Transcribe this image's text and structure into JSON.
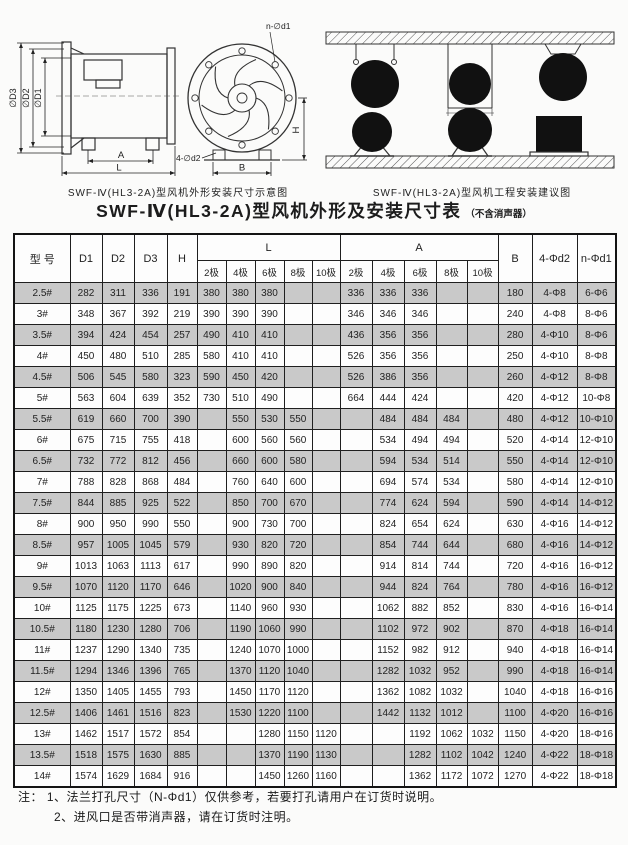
{
  "figures": {
    "left_caption": "SWF-Ⅳ(HL3-2A)型风机外形安装尺寸示意图",
    "right_caption": "SWF-Ⅳ(HL3-2A)型风机工程安装建议图",
    "labels": {
      "phi_d3": "∅D3",
      "phi_d2": "∅D2",
      "phi_d1": "∅D1",
      "dim_a": "A",
      "dim_l": "L",
      "n_phi_d1": "n-∅d1",
      "four_phi_d2": "4-∅d2",
      "dim_h": "H",
      "dim_b": "B"
    }
  },
  "title": {
    "main": "SWF-Ⅳ(HL3-2A)型风机外形及安装尺寸表",
    "suffix": "（不含消声器）"
  },
  "table": {
    "headers": {
      "model": "型 号",
      "d1": "D1",
      "d2": "D2",
      "d3": "D3",
      "h": "H",
      "l_group": "L",
      "a_group": "A",
      "b": "B",
      "bolt_d2": "4-Φd2",
      "bolt_d1": "n-Φd1",
      "poles": [
        "2极",
        "4极",
        "6极",
        "8极",
        "10极"
      ]
    },
    "rows": [
      [
        "2.5#",
        "282",
        "311",
        "336",
        "191",
        "380",
        "380",
        "380",
        "",
        "",
        "336",
        "336",
        "336",
        "",
        "",
        "180",
        "4-Φ8",
        "6-Φ6"
      ],
      [
        "3#",
        "348",
        "367",
        "392",
        "219",
        "390",
        "390",
        "390",
        "",
        "",
        "346",
        "346",
        "346",
        "",
        "",
        "240",
        "4-Φ8",
        "8-Φ6"
      ],
      [
        "3.5#",
        "394",
        "424",
        "454",
        "257",
        "490",
        "410",
        "410",
        "",
        "",
        "436",
        "356",
        "356",
        "",
        "",
        "280",
        "4-Φ10",
        "8-Φ6"
      ],
      [
        "4#",
        "450",
        "480",
        "510",
        "285",
        "580",
        "410",
        "410",
        "",
        "",
        "526",
        "356",
        "356",
        "",
        "",
        "250",
        "4-Φ10",
        "8-Φ8"
      ],
      [
        "4.5#",
        "506",
        "545",
        "580",
        "323",
        "590",
        "450",
        "420",
        "",
        "",
        "526",
        "386",
        "356",
        "",
        "",
        "260",
        "4-Φ12",
        "8-Φ8"
      ],
      [
        "5#",
        "563",
        "604",
        "639",
        "352",
        "730",
        "510",
        "490",
        "",
        "",
        "664",
        "444",
        "424",
        "",
        "",
        "420",
        "4-Φ12",
        "10-Φ8"
      ],
      [
        "5.5#",
        "619",
        "660",
        "700",
        "390",
        "",
        "550",
        "530",
        "550",
        "",
        "",
        "484",
        "484",
        "484",
        "",
        "480",
        "4-Φ12",
        "10-Φ10"
      ],
      [
        "6#",
        "675",
        "715",
        "755",
        "418",
        "",
        "600",
        "560",
        "560",
        "",
        "",
        "534",
        "494",
        "494",
        "",
        "520",
        "4-Φ14",
        "12-Φ10"
      ],
      [
        "6.5#",
        "732",
        "772",
        "812",
        "456",
        "",
        "660",
        "600",
        "580",
        "",
        "",
        "594",
        "534",
        "514",
        "",
        "550",
        "4-Φ14",
        "12-Φ10"
      ],
      [
        "7#",
        "788",
        "828",
        "868",
        "484",
        "",
        "760",
        "640",
        "600",
        "",
        "",
        "694",
        "574",
        "534",
        "",
        "580",
        "4-Φ14",
        "12-Φ10"
      ],
      [
        "7.5#",
        "844",
        "885",
        "925",
        "522",
        "",
        "850",
        "700",
        "670",
        "",
        "",
        "774",
        "624",
        "594",
        "",
        "590",
        "4-Φ14",
        "14-Φ12"
      ],
      [
        "8#",
        "900",
        "950",
        "990",
        "550",
        "",
        "900",
        "730",
        "700",
        "",
        "",
        "824",
        "654",
        "624",
        "",
        "630",
        "4-Φ16",
        "14-Φ12"
      ],
      [
        "8.5#",
        "957",
        "1005",
        "1045",
        "579",
        "",
        "930",
        "820",
        "720",
        "",
        "",
        "854",
        "744",
        "644",
        "",
        "680",
        "4-Φ16",
        "14-Φ12"
      ],
      [
        "9#",
        "1013",
        "1063",
        "1113",
        "617",
        "",
        "990",
        "890",
        "820",
        "",
        "",
        "914",
        "814",
        "744",
        "",
        "720",
        "4-Φ16",
        "16-Φ12"
      ],
      [
        "9.5#",
        "1070",
        "1120",
        "1170",
        "646",
        "",
        "1020",
        "900",
        "840",
        "",
        "",
        "944",
        "824",
        "764",
        "",
        "780",
        "4-Φ16",
        "16-Φ12"
      ],
      [
        "10#",
        "1125",
        "1175",
        "1225",
        "673",
        "",
        "1140",
        "960",
        "930",
        "",
        "",
        "1062",
        "882",
        "852",
        "",
        "830",
        "4-Φ16",
        "16-Φ14"
      ],
      [
        "10.5#",
        "1180",
        "1230",
        "1280",
        "706",
        "",
        "1190",
        "1060",
        "990",
        "",
        "",
        "1102",
        "972",
        "902",
        "",
        "870",
        "4-Φ18",
        "16-Φ14"
      ],
      [
        "11#",
        "1237",
        "1290",
        "1340",
        "735",
        "",
        "1240",
        "1070",
        "1000",
        "",
        "",
        "1152",
        "982",
        "912",
        "",
        "940",
        "4-Φ18",
        "16-Φ14"
      ],
      [
        "11.5#",
        "1294",
        "1346",
        "1396",
        "765",
        "",
        "1370",
        "1120",
        "1040",
        "",
        "",
        "1282",
        "1032",
        "952",
        "",
        "990",
        "4-Φ18",
        "16-Φ14"
      ],
      [
        "12#",
        "1350",
        "1405",
        "1455",
        "793",
        "",
        "1450",
        "1170",
        "1120",
        "",
        "",
        "1362",
        "1082",
        "1032",
        "",
        "1040",
        "4-Φ18",
        "16-Φ16"
      ],
      [
        "12.5#",
        "1406",
        "1461",
        "1516",
        "823",
        "",
        "1530",
        "1220",
        "1100",
        "",
        "",
        "1442",
        "1132",
        "1012",
        "",
        "1100",
        "4-Φ20",
        "16-Φ16"
      ],
      [
        "13#",
        "1462",
        "1517",
        "1572",
        "854",
        "",
        "",
        "1280",
        "1150",
        "1120",
        "",
        "",
        "1192",
        "1062",
        "1032",
        "1150",
        "4-Φ20",
        "18-Φ16"
      ],
      [
        "13.5#",
        "1518",
        "1575",
        "1630",
        "885",
        "",
        "",
        "1370",
        "1190",
        "1130",
        "",
        "",
        "1282",
        "1102",
        "1042",
        "1240",
        "4-Φ22",
        "18-Φ18"
      ],
      [
        "14#",
        "1574",
        "1629",
        "1684",
        "916",
        "",
        "",
        "1450",
        "1260",
        "1160",
        "",
        "",
        "1362",
        "1172",
        "1072",
        "1270",
        "4-Φ22",
        "18-Φ18"
      ]
    ]
  },
  "notes": {
    "line1": "注：  1、法兰打孔尺寸（N-Φd1）仅供参考，若要打孔请用户在订货时说明。",
    "line2": "2、进风口是否带消声器，请在订货时注明。"
  }
}
